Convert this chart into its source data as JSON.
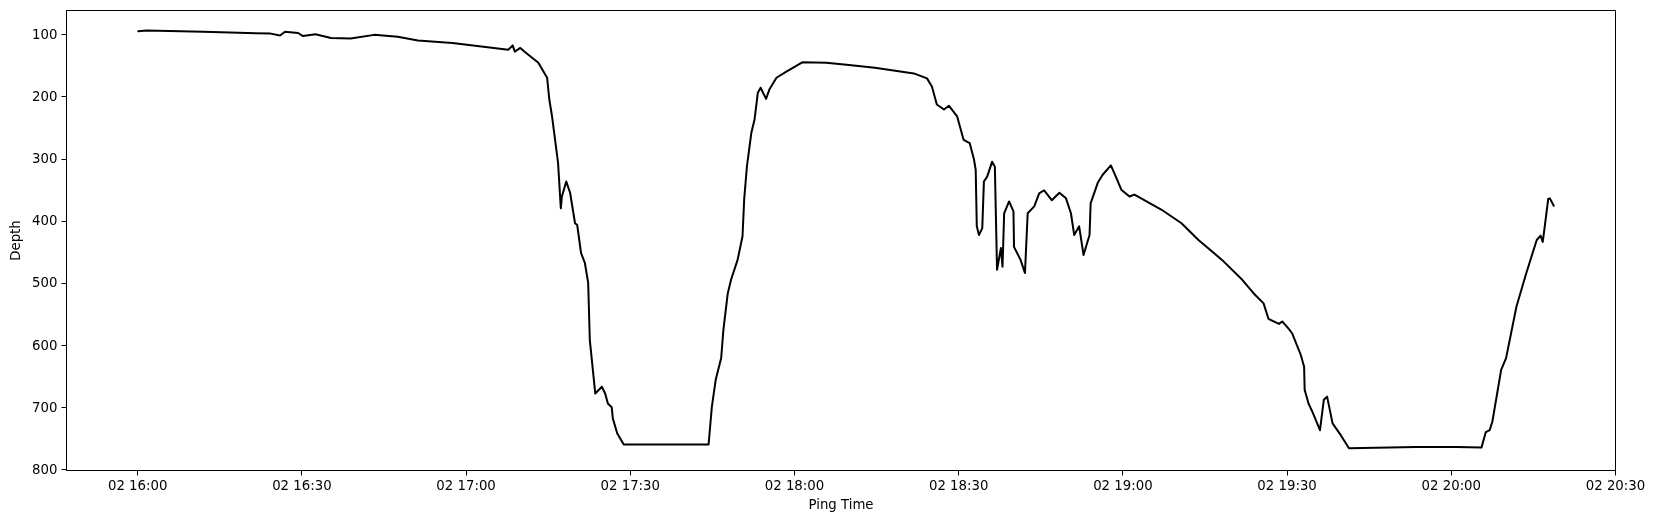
{
  "chart_data": {
    "type": "line",
    "xlabel": "Ping Time",
    "ylabel": "Depth",
    "x": [
      "--01-02T16:00:12",
      "--01-02T16:01:42",
      "--01-02T16:12:06",
      "--01-02T16:24:24",
      "--01-02T16:26:06",
      "--01-02T16:27:00",
      "--01-02T16:29:24",
      "--01-02T16:30:18",
      "--01-02T16:32:36",
      "--01-02T16:35:24",
      "--01-02T16:39:00",
      "--01-02T16:43:18",
      "--01-02T16:47:36",
      "--01-02T16:51:18",
      "--01-02T16:57:36",
      "--01-02T17:07:48",
      "--01-02T17:08:36",
      "--01-02T17:09:00",
      "--01-02T17:10:00",
      "--01-02T17:10:54",
      "--01-02T17:13:18",
      "--01-02T17:14:54",
      "--01-02T17:15:18",
      "--01-02T17:15:48",
      "--01-02T17:16:54",
      "--01-02T17:17:24",
      "--01-02T17:17:36",
      "--01-02T17:18:24",
      "--01-02T17:19:06",
      "--01-02T17:20:00",
      "--01-02T17:20:24",
      "--01-02T17:21:06",
      "--01-02T17:21:48",
      "--01-02T17:22:24",
      "--01-02T17:22:42",
      "--01-02T17:23:42",
      "--01-02T17:24:54",
      "--01-02T17:25:30",
      "--01-02T17:26:00",
      "--01-02T17:26:42",
      "--01-02T17:26:54",
      "--01-02T17:27:42",
      "--01-02T17:28:54",
      "--01-02T17:44:24",
      "--01-02T17:45:00",
      "--01-02T17:45:42",
      "--01-02T17:46:42",
      "--01-02T17:47:06",
      "--01-02T17:47:54",
      "--01-02T17:48:30",
      "--01-02T17:49:42",
      "--01-02T17:50:36",
      "--01-02T17:50:54",
      "--01-02T17:51:24",
      "--01-02T17:52:12",
      "--01-02T17:52:48",
      "--01-02T17:53:24",
      "--01-02T17:53:54",
      "--01-02T17:54:54",
      "--01-02T17:55:30",
      "--01-02T17:56:48",
      "--01-02T17:58:36",
      "--01-02T18:01:36",
      "--01-02T18:05:54",
      "--01-02T18:09:36",
      "--01-02T18:14:48",
      "--01-02T18:21:54",
      "--01-02T18:24:18",
      "--01-02T18:25:12",
      "--01-02T18:26:06",
      "--01-02T18:27:24",
      "--01-02T18:28:18",
      "--01-02T18:29:48",
      "--01-02T18:31:00",
      "--01-02T18:32:06",
      "--01-02T18:32:54",
      "--01-02T18:33:12",
      "--01-02T18:33:24",
      "--01-02T18:33:48",
      "--01-02T18:34:24",
      "--01-02T18:34:42",
      "--01-02T18:35:18",
      "--01-02T18:36:12",
      "--01-02T18:36:42",
      "--01-02T18:37:06",
      "--01-02T18:37:48",
      "--01-02T18:38:06",
      "--01-02T18:38:24",
      "--01-02T18:39:18",
      "--01-02T18:40:06",
      "--01-02T18:40:12",
      "--01-02T18:41:24",
      "--01-02T18:42:12",
      "--01-02T18:42:42",
      "--01-02T18:43:54",
      "--01-02T18:44:48",
      "--01-02T18:45:42",
      "--01-02T18:47:06",
      "--01-02T18:48:30",
      "--01-02T18:49:42",
      "--01-02T18:50:36",
      "--01-02T18:51:12",
      "--01-02T18:52:06",
      "--01-02T18:52:54",
      "--01-02T18:54:00",
      "--01-02T18:54:12",
      "--01-02T18:55:30",
      "--01-02T18:56:24",
      "--01-02T18:57:54",
      "--01-02T18:58:48",
      "--01-02T18:59:48",
      "--01-02T19:01:18",
      "--01-02T19:02:12",
      "--01-02T19:07:06",
      "--01-02T19:10:48",
      "--01-02T19:13:54",
      "--01-02T19:18:12",
      "--01-02T19:21:54",
      "--01-02T19:24:00",
      "--01-02T19:25:48",
      "--01-02T19:26:42",
      "--01-02T19:28:36",
      "--01-02T19:29:12",
      "--01-02T19:30:24",
      "--01-02T19:31:00",
      "--01-02T19:32:36",
      "--01-02T19:33:12",
      "--01-02T19:33:18",
      "--01-02T19:34:00",
      "--01-02T19:34:42",
      "--01-02T19:36:06",
      "--01-02T19:36:48",
      "--01-02T19:37:24",
      "--01-02T19:38:24",
      "--01-02T19:39:54",
      "--01-02T19:41:24",
      "--01-02T19:53:42",
      "--01-02T20:01:00",
      "--01-02T20:05:36",
      "--01-02T20:06:24",
      "--01-02T20:07:06",
      "--01-02T20:07:36",
      "--01-02T20:09:12",
      "--01-02T20:10:06",
      "--01-02T20:12:00",
      "--01-02T20:13:48",
      "--01-02T20:15:42",
      "--01-02T20:16:24",
      "--01-02T20:16:48",
      "--01-02T20:17:24",
      "--01-02T20:17:48",
      "--01-02T20:18:06",
      "--01-02T20:18:48"
    ],
    "series": [
      {
        "color": "#000000",
        "values": [
          95,
          94,
          96,
          99,
          102,
          96,
          98,
          103,
          100,
          106,
          107,
          101,
          104,
          110,
          114,
          125,
          118,
          128,
          122,
          129,
          146,
          170,
          205,
          232,
          307,
          380,
          361,
          337,
          355,
          404,
          407,
          452,
          468,
          500,
          592,
          678,
          667,
          678,
          694,
          700,
          718,
          742,
          760,
          760,
          699,
          656,
          621,
          576,
          517,
          495,
          463,
          425,
          366,
          313,
          259,
          237,
          194,
          186,
          204,
          189,
          170,
          160,
          145,
          146,
          149,
          154,
          163,
          171,
          184,
          213,
          221,
          215,
          232,
          270,
          275,
          302,
          318,
          409,
          423,
          412,
          337,
          329,
          305,
          313,
          479,
          444,
          474,
          388,
          369,
          385,
          442,
          463,
          484,
          388,
          377,
          356,
          351,
          367,
          355,
          364,
          388,
          423,
          409,
          455,
          423,
          372,
          339,
          326,
          311,
          329,
          350,
          361,
          358,
          382,
          404,
          431,
          463,
          495,
          517,
          533,
          558,
          566,
          562,
          574,
          581,
          616,
          635,
          672,
          694,
          707,
          737,
          688,
          683,
          726,
          745,
          766,
          764,
          764,
          765,
          740,
          737,
          723,
          640,
          621,
          538,
          484,
          431,
          424,
          434,
          393,
          365,
          364,
          376
        ]
      }
    ],
    "xlim": [
      "--01-02T15:47",
      "--01-02T20:30"
    ],
    "xticks": [
      {
        "value": "--01-02T16:00",
        "label": "02 16:00"
      },
      {
        "value": "--01-02T16:30",
        "label": "02 16:30"
      },
      {
        "value": "--01-02T17:00",
        "label": "02 17:00"
      },
      {
        "value": "--01-02T17:30",
        "label": "02 17:30"
      },
      {
        "value": "--01-02T18:00",
        "label": "02 18:00"
      },
      {
        "value": "--01-02T18:30",
        "label": "02 18:30"
      },
      {
        "value": "--01-02T19:00",
        "label": "02 19:00"
      },
      {
        "value": "--01-02T19:30",
        "label": "02 19:30"
      },
      {
        "value": "--01-02T20:00",
        "label": "02 20:00"
      },
      {
        "value": "--01-02T20:30",
        "label": "02 20:30"
      }
    ],
    "ylim": [
      801,
      61
    ],
    "yticks": [
      100,
      200,
      300,
      400,
      500,
      600,
      700,
      800
    ],
    "line_style": "solid"
  }
}
